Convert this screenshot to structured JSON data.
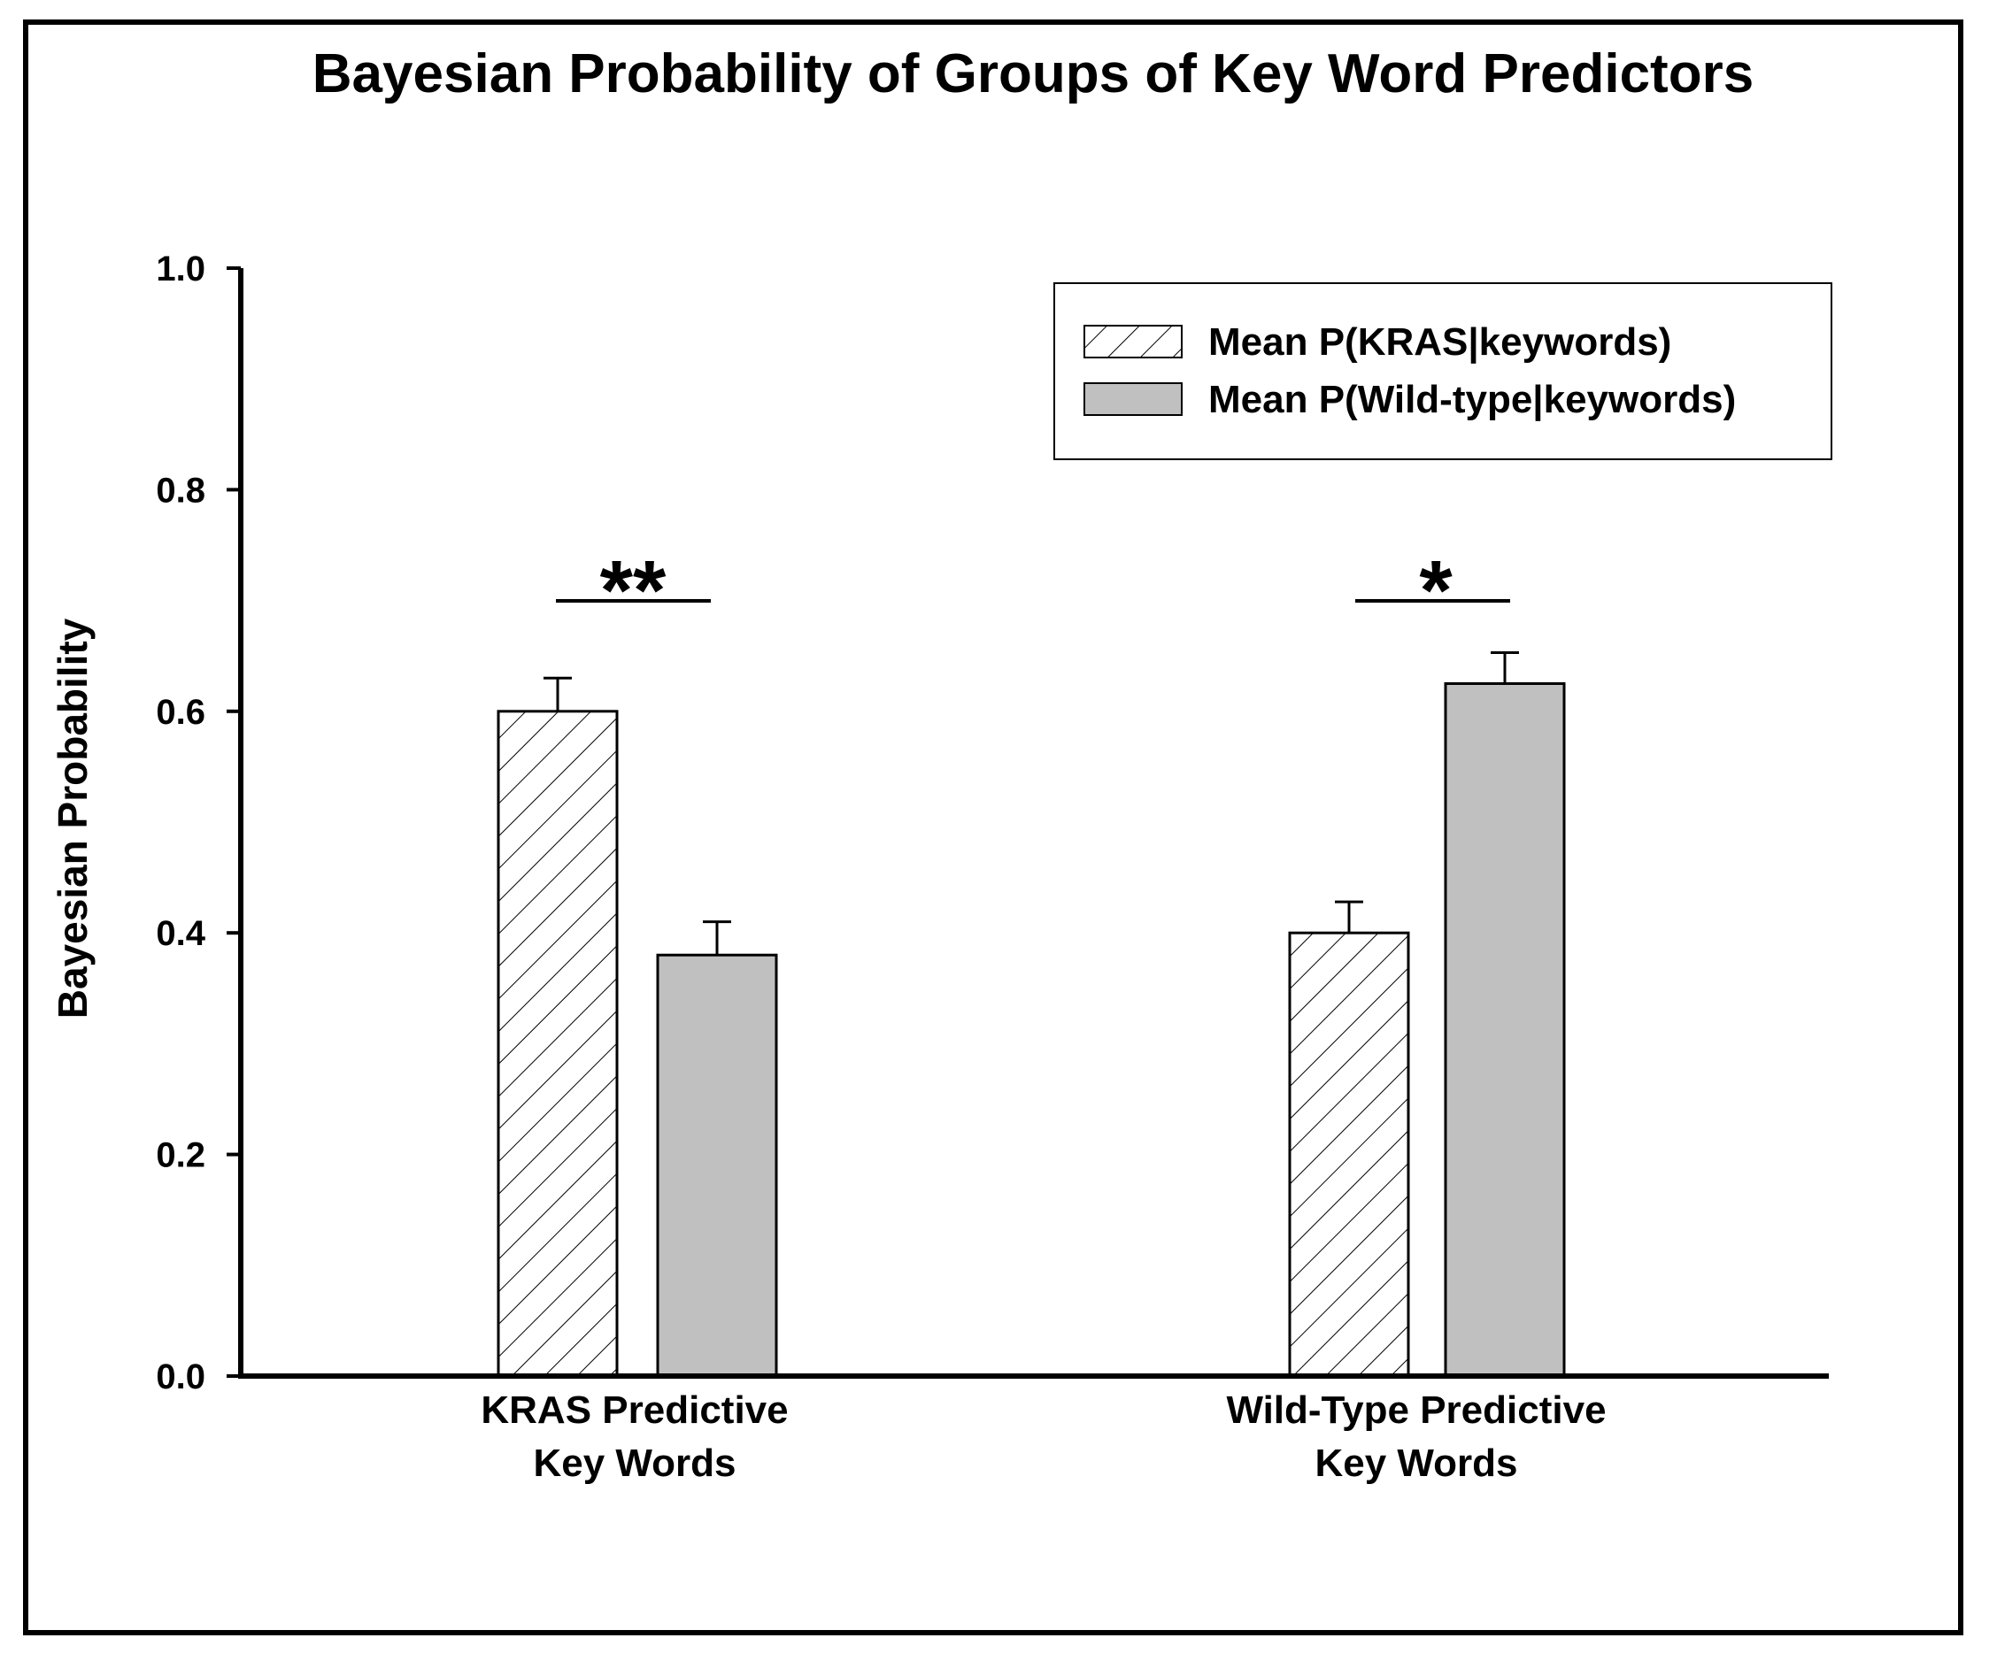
{
  "chart_data": {
    "type": "bar",
    "title": "Bayesian Probability of Groups of Key Word Predictors",
    "ylabel": "Bayesian Probability",
    "xlabel": "",
    "ylim": [
      0,
      1.0
    ],
    "yticks": [
      "0.0",
      "0.2",
      "0.4",
      "0.6",
      "0.8",
      "1.0"
    ],
    "categories": [
      {
        "lines": [
          "KRAS Predictive",
          "Key Words"
        ]
      },
      {
        "lines": [
          "Wild-Type Predictive",
          "Key Words"
        ]
      }
    ],
    "series": [
      {
        "name": "Mean P(KRAS|keywords)",
        "values": [
          0.6,
          0.4
        ],
        "errors": [
          0.03,
          0.028
        ],
        "fill": "hatch",
        "color": "#ffffff"
      },
      {
        "name": "Mean P(Wild-type|keywords)",
        "values": [
          0.38,
          0.625
        ],
        "errors": [
          0.03,
          0.028
        ],
        "fill": "solid",
        "color": "#c0c0c0"
      }
    ],
    "significance": [
      "**",
      "*"
    ],
    "legend_position": "top-right",
    "grid": false
  }
}
